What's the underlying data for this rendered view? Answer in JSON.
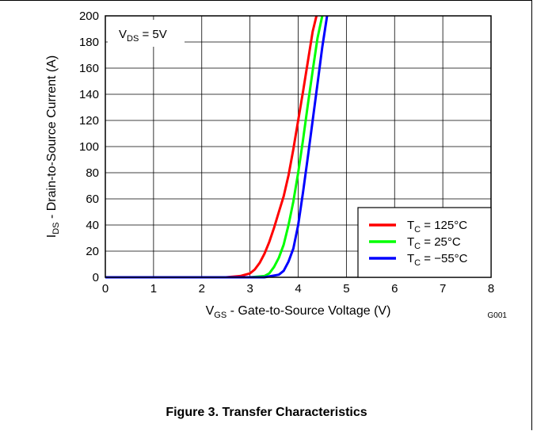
{
  "figure": {
    "code": "G001",
    "caption": "Figure 3. Transfer Characteristics"
  },
  "chart_data": {
    "type": "line",
    "xlabel": {
      "main": "V",
      "sub": "GS",
      "rest": " - Gate-to-Source Voltage (V)"
    },
    "ylabel": {
      "main": "I",
      "sub": "DS",
      "rest": " - Drain-to-Source Current  (A)"
    },
    "xlim": [
      0,
      8
    ],
    "ylim": [
      0,
      200
    ],
    "xticks": [
      0,
      1,
      2,
      3,
      4,
      5,
      6,
      7,
      8
    ],
    "yticks": [
      0,
      20,
      40,
      60,
      80,
      100,
      120,
      140,
      160,
      180,
      200
    ],
    "grid": true,
    "condition": {
      "main": "V",
      "sub": "DS",
      "rest": " = 5V"
    },
    "legend_position": "bottom-right",
    "series": [
      {
        "name": {
          "main": "T",
          "sub": "C",
          "rest": " = 125°C"
        },
        "color": "#ff0000",
        "x": [
          0,
          2.5,
          2.8,
          3.0,
          3.1,
          3.2,
          3.3,
          3.4,
          3.5,
          3.6,
          3.7,
          3.8,
          3.9,
          4.0,
          4.1,
          4.2,
          4.3,
          4.38
        ],
        "y": [
          0,
          0,
          1,
          3,
          6,
          11,
          18,
          27,
          38,
          50,
          62,
          78,
          98,
          120,
          142,
          165,
          188,
          200
        ]
      },
      {
        "name": {
          "main": "T",
          "sub": "C",
          "rest": " = 25°C"
        },
        "color": "#00ff00",
        "x": [
          0,
          3.0,
          3.3,
          3.4,
          3.5,
          3.6,
          3.7,
          3.8,
          3.9,
          4.0,
          4.1,
          4.2,
          4.3,
          4.4,
          4.5
        ],
        "y": [
          0,
          0,
          1,
          3,
          8,
          15,
          25,
          40,
          58,
          80,
          105,
          132,
          158,
          183,
          200
        ]
      },
      {
        "name": {
          "main": "T",
          "sub": "C",
          "rest": " = −55°C"
        },
        "color": "#0000ff",
        "x": [
          0,
          3.3,
          3.6,
          3.7,
          3.8,
          3.9,
          4.0,
          4.1,
          4.2,
          4.3,
          4.4,
          4.5,
          4.6
        ],
        "y": [
          0,
          0,
          2,
          5,
          12,
          22,
          40,
          65,
          92,
          120,
          148,
          176,
          200
        ]
      }
    ]
  }
}
